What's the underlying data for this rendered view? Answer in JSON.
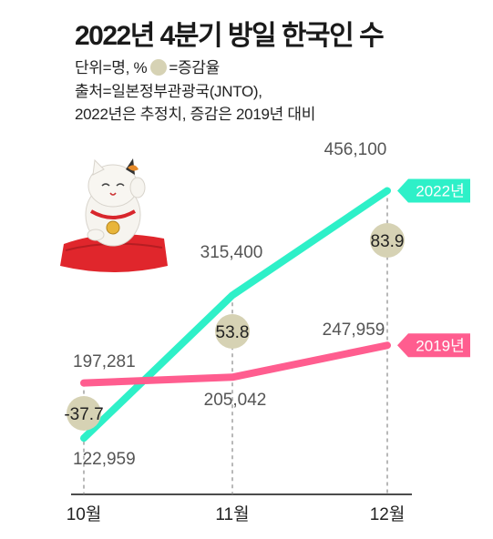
{
  "header": {
    "title": "2022년 4분기 방일 한국인 수",
    "unit_prefix": "단위=명, %",
    "unit_suffix": "=증감율",
    "source": "출처=일본정부관광국(JNTO),",
    "note": "2022년은 추정치, 증감은 2019년 대비"
  },
  "chart_data": {
    "type": "line",
    "categories": [
      "10월",
      "11월",
      "12월"
    ],
    "series": [
      {
        "name": "2022년",
        "color": "#2ef0c8",
        "values": [
          122959,
          315400,
          456100
        ],
        "labels": [
          "122,959",
          "315,400",
          "456,100"
        ]
      },
      {
        "name": "2019년",
        "color": "#ff5d8f",
        "values": [
          197281,
          205042,
          247959
        ],
        "labels": [
          "197,281",
          "205,042",
          "247,959"
        ]
      }
    ],
    "change_pct": [
      "-37.7",
      "53.8",
      "83.9"
    ],
    "change_color": "#d6d2b4",
    "ylim": [
      100000,
      480000
    ],
    "grid": false
  }
}
